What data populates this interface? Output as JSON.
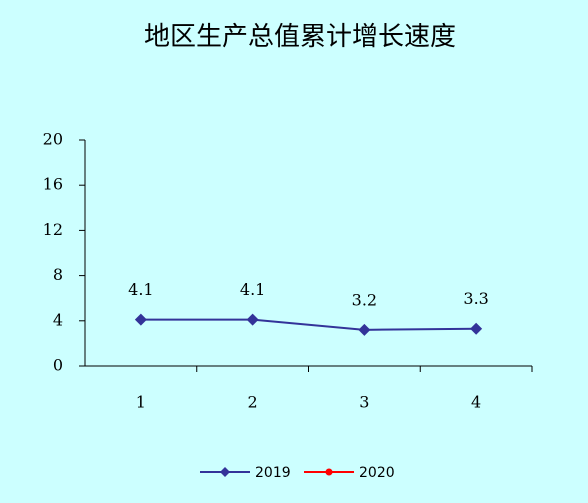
{
  "chart_data": {
    "type": "line",
    "title": "地区生产总值累计增长速度",
    "categories": [
      "1",
      "2",
      "3",
      "4"
    ],
    "series": [
      {
        "name": "2019",
        "color": "#333399",
        "values": [
          4.1,
          4.1,
          3.2,
          3.3
        ]
      },
      {
        "name": "2020",
        "color": "#ff0000",
        "values": [
          null,
          null,
          null,
          null
        ]
      }
    ],
    "ylim": [
      0,
      20
    ],
    "yticks": [
      0,
      4,
      8,
      12,
      16,
      20
    ],
    "grid": false,
    "legend": "bottom",
    "data_labels": true
  }
}
